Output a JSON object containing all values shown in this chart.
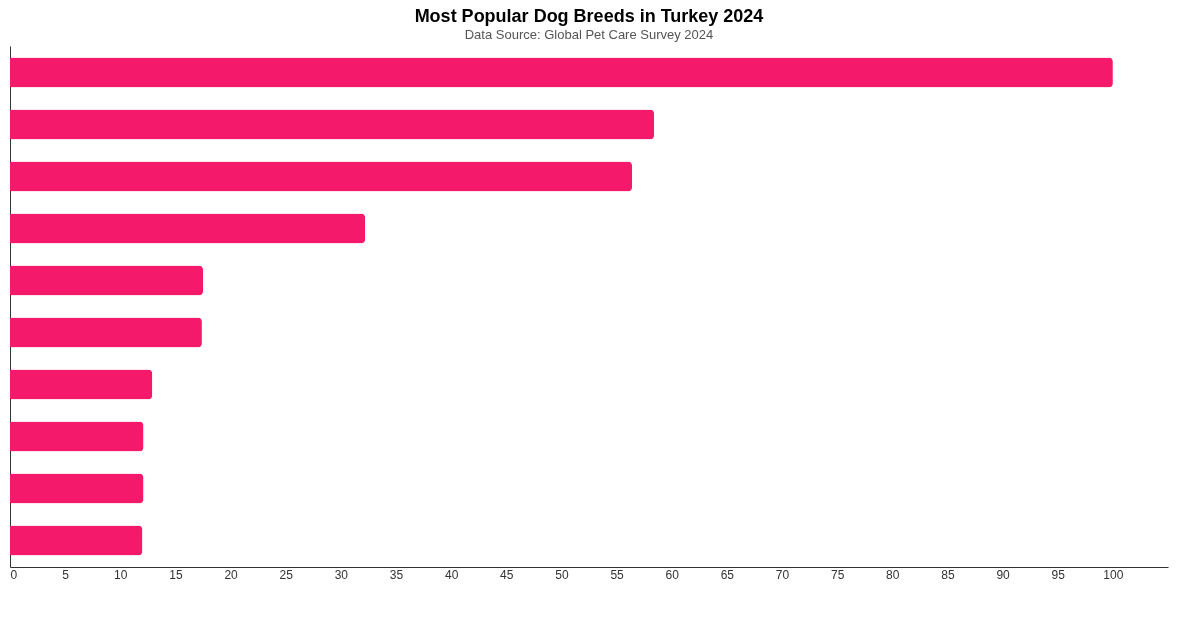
{
  "chart_data": {
    "type": "bar",
    "orientation": "horizontal",
    "title": "Most Popular Dog Breeds in Turkey 2024",
    "subtitle": "Data Source: Global Pet Care Survey 2024",
    "categories": [
      null,
      null,
      null,
      null,
      null,
      null,
      null,
      null,
      null,
      null
    ],
    "values": [
      100,
      58.4,
      56.4,
      32.2,
      17.5,
      17.4,
      12.9,
      12.1,
      12.1,
      12.0
    ],
    "color": "#f5196b",
    "xlim": [
      0,
      105
    ],
    "xticks": [
      0,
      5,
      10,
      15,
      20,
      25,
      30,
      35,
      40,
      45,
      50,
      55,
      60,
      65,
      70,
      75,
      80,
      85,
      90,
      95,
      100
    ],
    "grid": false,
    "tick_labels": "x"
  }
}
